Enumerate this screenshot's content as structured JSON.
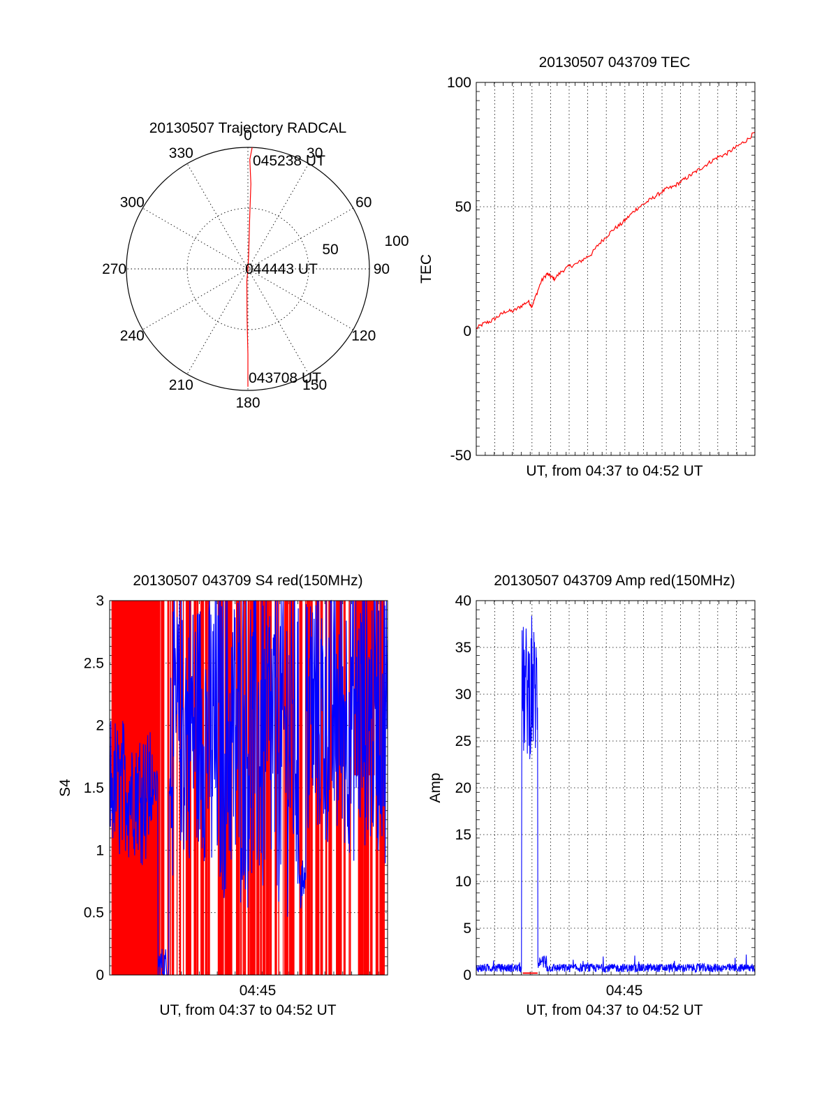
{
  "chart_data": [
    {
      "type": "polar",
      "title": "20130507 Trajectory RADCAL",
      "angle_ticks": [
        "0",
        "30",
        "60",
        "90",
        "120",
        "150",
        "180",
        "210",
        "240",
        "270",
        "300",
        "330"
      ],
      "radius_ticks": [
        "50",
        "100"
      ],
      "rlim": [
        0,
        100
      ],
      "grid": true,
      "trajectory": {
        "color": "#ff0000",
        "points": [
          {
            "az": 180,
            "r": 97
          },
          {
            "az": 180,
            "r": 70
          },
          {
            "az": 181,
            "r": 40
          },
          {
            "az": 185,
            "r": 10
          },
          {
            "az": 0,
            "r": 0
          },
          {
            "az": 3,
            "r": 12
          },
          {
            "az": 2,
            "r": 40
          },
          {
            "az": 2,
            "r": 70
          },
          {
            "az": 1,
            "r": 90
          },
          {
            "az": 2,
            "r": 100
          }
        ]
      },
      "annotations": [
        {
          "text": "045238 UT",
          "az": 12,
          "r": 88
        },
        {
          "text": "044443 UT",
          "az": 90,
          "r": 8
        },
        {
          "text": "043708 UT",
          "az": 166,
          "r": 94
        }
      ]
    },
    {
      "type": "line",
      "title": "20130507 043709 TEC",
      "xlabel": "UT, from 04:37 to 04:52 UT",
      "ylabel": "TEC",
      "ylim": [
        -50,
        100
      ],
      "xlim": [
        0,
        15
      ],
      "yticks": [
        "-50",
        "0",
        "50",
        "100"
      ],
      "grid": true,
      "series": [
        {
          "color": "#ff0000",
          "x": [
            0,
            0.4,
            0.8,
            1.2,
            1.6,
            2.0,
            2.4,
            2.8,
            3.0,
            3.2,
            3.5,
            3.8,
            4.0,
            4.2,
            4.6,
            5.0,
            5.4,
            5.8,
            6.2,
            6.6,
            7.0,
            7.4,
            7.8,
            8.2,
            8.6,
            9.0,
            9.4,
            9.8,
            10.2,
            10.6,
            11.0,
            11.4,
            11.8,
            12.2,
            12.6,
            13.0,
            13.4,
            13.8,
            14.2,
            14.6,
            15.0
          ],
          "y": [
            1,
            3,
            4,
            6,
            8,
            8,
            10,
            12,
            10,
            14,
            20,
            23,
            22,
            21,
            24,
            26,
            27,
            29,
            31,
            35,
            38,
            41,
            43,
            46,
            49,
            51,
            53,
            55,
            57,
            58,
            60,
            62,
            64,
            66,
            68,
            70,
            71,
            73,
            75,
            77,
            80
          ]
        }
      ]
    },
    {
      "type": "line",
      "title": "20130507 043709 S4 red(150MHz)",
      "xlabel": "UT, from 04:37 to 04:52 UT",
      "ylabel": "S4",
      "ylim": [
        0,
        3
      ],
      "xlim": [
        0,
        15
      ],
      "yticks": [
        "0",
        "0.5",
        "1",
        "1.5",
        "2",
        "2.5",
        "3"
      ],
      "xticks": [
        {
          "x": 8,
          "label": "04:45"
        }
      ],
      "grid": true,
      "series": [
        {
          "color": "#ff0000",
          "x": [],
          "y": []
        },
        {
          "color": "#0000ff",
          "x": [],
          "y": []
        }
      ]
    },
    {
      "type": "line",
      "title": "20130507 043709 Amp red(150MHz)",
      "xlabel": "UT, from 04:37 to 04:52 UT",
      "ylabel": "Amp",
      "ylim": [
        0,
        40
      ],
      "xlim": [
        0,
        15
      ],
      "yticks": [
        "0",
        "5",
        "10",
        "15",
        "20",
        "25",
        "30",
        "35",
        "40"
      ],
      "xticks": [
        {
          "x": 8,
          "label": "04:45"
        }
      ],
      "grid": true,
      "series": [
        {
          "color": "#0000ff",
          "x": [],
          "y": []
        },
        {
          "color": "#ff0000",
          "x": [
            2.5,
            3.3
          ],
          "y": [
            0.2,
            0.2
          ]
        }
      ]
    }
  ]
}
